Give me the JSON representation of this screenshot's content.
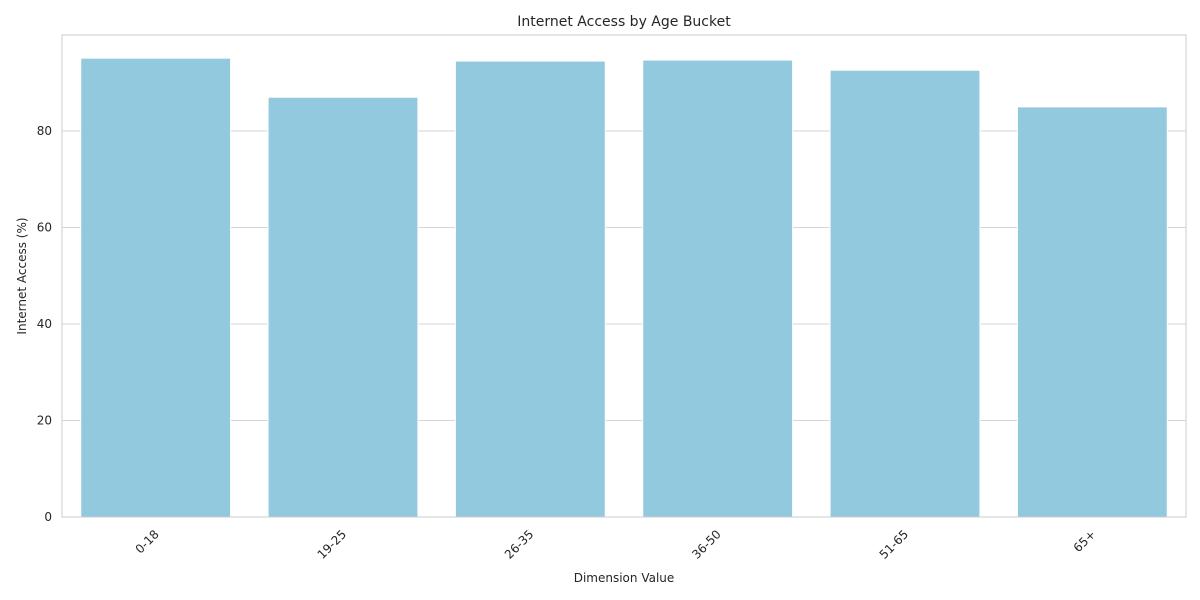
{
  "chart_data": {
    "type": "bar",
    "title": "Internet Access by Age Bucket",
    "xlabel": "Dimension Value",
    "ylabel": "Internet Access (%)",
    "categories": [
      "0-18",
      "19-25",
      "26-35",
      "36-50",
      "51-65",
      "65+"
    ],
    "values": [
      95.1,
      87.0,
      94.5,
      94.7,
      92.6,
      85.0
    ],
    "ylim": [
      0,
      99.9
    ],
    "yticks": [
      0,
      20,
      40,
      60,
      80
    ],
    "grid": "y-axis",
    "legend": "none",
    "bar_color": "#92c9de",
    "x_tick_rotation": 45
  }
}
